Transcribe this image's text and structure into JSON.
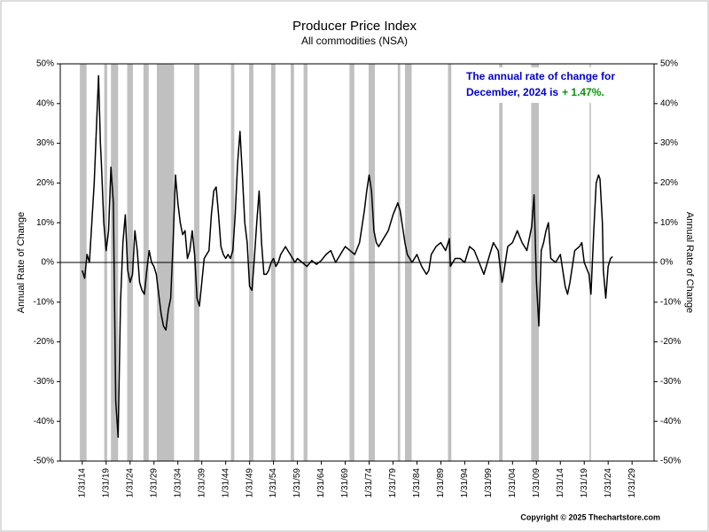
{
  "chart_data": {
    "type": "line",
    "title": "Producer Price Index",
    "subtitle": "All commodities (NSA)",
    "ylabel": "Annual Rate of Change",
    "y2label": "Annual Rate of Change",
    "annotation": {
      "line1": "The annual rate of change for",
      "line2": "December, 2024 is",
      "value_text": "+ 1.47%."
    },
    "copyright": "Copyright © 2025 Thechartstore.com",
    "color": "#000000",
    "recession_color": "#c0c0c0",
    "xlim": [
      1909.4,
      2033.6
    ],
    "ylim": [
      -50,
      50
    ],
    "y2lim": [
      -50,
      50
    ],
    "xticks": [
      {
        "value": 1914,
        "label": "1/31/14"
      },
      {
        "value": 1919,
        "label": "1/31/19"
      },
      {
        "value": 1924,
        "label": "1/31/24"
      },
      {
        "value": 1929,
        "label": "1/31/29"
      },
      {
        "value": 1934,
        "label": "1/31/34"
      },
      {
        "value": 1939,
        "label": "1/31/39"
      },
      {
        "value": 1944,
        "label": "1/31/44"
      },
      {
        "value": 1949,
        "label": "1/31/49"
      },
      {
        "value": 1954,
        "label": "1/31/54"
      },
      {
        "value": 1959,
        "label": "1/31/59"
      },
      {
        "value": 1964,
        "label": "1/31/64"
      },
      {
        "value": 1969,
        "label": "1/31/69"
      },
      {
        "value": 1974,
        "label": "1/31/74"
      },
      {
        "value": 1979,
        "label": "1/31/79"
      },
      {
        "value": 1984,
        "label": "1/31/84"
      },
      {
        "value": 1989,
        "label": "1/31/89"
      },
      {
        "value": 1994,
        "label": "1/31/94"
      },
      {
        "value": 1999,
        "label": "1/31/99"
      },
      {
        "value": 2004,
        "label": "1/31/04"
      },
      {
        "value": 2009,
        "label": "1/31/09"
      },
      {
        "value": 2014,
        "label": "1/31/14"
      },
      {
        "value": 2019,
        "label": "1/31/19"
      },
      {
        "value": 2024,
        "label": "1/31/24"
      },
      {
        "value": 2029,
        "label": "1/31/29"
      }
    ],
    "yticks": [
      {
        "value": 50,
        "label": "50%"
      },
      {
        "value": 40,
        "label": "40%"
      },
      {
        "value": 30,
        "label": "30%"
      },
      {
        "value": 20,
        "label": "20%"
      },
      {
        "value": 10,
        "label": "10%"
      },
      {
        "value": 0,
        "label": "0%"
      },
      {
        "value": -10,
        "label": "-10%"
      },
      {
        "value": -20,
        "label": "-20%"
      },
      {
        "value": -30,
        "label": "-30%"
      },
      {
        "value": -40,
        "label": "-40%"
      },
      {
        "value": -50,
        "label": "-50%"
      }
    ],
    "y2ticks": [
      {
        "value": 50,
        "label": "50%"
      },
      {
        "value": 40,
        "label": "40%"
      },
      {
        "value": 30,
        "label": "30%"
      },
      {
        "value": 20,
        "label": "20%"
      },
      {
        "value": 10,
        "label": "10%"
      },
      {
        "value": 0,
        "label": "0%"
      },
      {
        "value": -10,
        "label": "-10%"
      },
      {
        "value": -20,
        "label": "-20%"
      },
      {
        "value": -30,
        "label": "-30%"
      },
      {
        "value": -40,
        "label": "-40%"
      },
      {
        "value": -50,
        "label": "-50%"
      }
    ],
    "recessions": [
      [
        1913.5,
        1914.9
      ],
      [
        1918.6,
        1919.2
      ],
      [
        1920.0,
        1921.5
      ],
      [
        1923.4,
        1924.6
      ],
      [
        1926.8,
        1927.9
      ],
      [
        1929.6,
        1933.2
      ],
      [
        1937.4,
        1938.5
      ],
      [
        1945.1,
        1945.8
      ],
      [
        1948.9,
        1949.8
      ],
      [
        1953.5,
        1954.4
      ],
      [
        1957.6,
        1958.3
      ],
      [
        1960.3,
        1961.1
      ],
      [
        1969.9,
        1970.9
      ],
      [
        1973.9,
        1975.2
      ],
      [
        1980.0,
        1980.5
      ],
      [
        1981.5,
        1982.9
      ],
      [
        1990.5,
        1991.2
      ],
      [
        2001.2,
        2001.9
      ],
      [
        2007.9,
        2009.5
      ],
      [
        2020.1,
        2020.4
      ]
    ],
    "x": [
      1914,
      1914.5,
      1915,
      1915.5,
      1916,
      1916.5,
      1917,
      1917.4,
      1917.8,
      1918,
      1918.5,
      1919,
      1919.5,
      1920,
      1920.5,
      1921,
      1921.5,
      1922,
      1922.5,
      1923,
      1923.5,
      1924,
      1924.5,
      1925,
      1925.5,
      1926,
      1926.5,
      1927,
      1927.5,
      1928,
      1928.5,
      1929,
      1929.5,
      1930,
      1930.5,
      1931,
      1931.5,
      1932,
      1932.5,
      1933,
      1933.5,
      1934,
      1934.5,
      1935,
      1935.5,
      1936,
      1936.5,
      1937,
      1937.5,
      1938,
      1938.5,
      1939,
      1939.5,
      1940,
      1940.5,
      1941,
      1941.5,
      1942,
      1942.5,
      1943,
      1943.5,
      1944,
      1944.5,
      1945,
      1945.5,
      1946,
      1946.5,
      1947,
      1947.5,
      1948,
      1948.5,
      1949,
      1949.5,
      1950,
      1950.5,
      1951,
      1951.5,
      1952,
      1952.5,
      1953,
      1953.5,
      1954,
      1954.5,
      1955,
      1955.5,
      1956,
      1956.5,
      1957,
      1957.5,
      1958,
      1958.5,
      1959,
      1960,
      1961,
      1962,
      1963,
      1964,
      1965,
      1966,
      1967,
      1968,
      1969,
      1970,
      1971,
      1972,
      1973,
      1973.5,
      1974,
      1974.5,
      1975,
      1975.5,
      1976,
      1977,
      1978,
      1979,
      1980,
      1980.5,
      1981,
      1981.5,
      1982,
      1983,
      1984,
      1985,
      1986,
      1986.5,
      1987,
      1988,
      1989,
      1990,
      1990.8,
      1991,
      1992,
      1993,
      1994,
      1995,
      1996,
      1997,
      1998,
      1999,
      2000,
      2001,
      2001.8,
      2002,
      2003,
      2004,
      2005,
      2006,
      2007,
      2008,
      2008.5,
      2009,
      2009.5,
      2010,
      2010.5,
      2011,
      2011.5,
      2012,
      2013,
      2014,
      2015,
      2015.5,
      2016,
      2017,
      2018,
      2018.5,
      2019,
      2020,
      2020.4,
      2021,
      2021.5,
      2022,
      2022.3,
      2022.8,
      2023,
      2023.5,
      2024,
      2024.5,
      2024.92
    ],
    "values": [
      -2,
      -4,
      2,
      0,
      10,
      20,
      35,
      47,
      30,
      25,
      10,
      3,
      8,
      24,
      15,
      -35,
      -44,
      -10,
      5,
      12,
      -2,
      -5,
      -3,
      8,
      3,
      -5,
      -7,
      -8,
      -2,
      3,
      0,
      -1,
      -3,
      -8,
      -13,
      -16,
      -17,
      -12,
      -9,
      5,
      22,
      15,
      10,
      7,
      8,
      1,
      3,
      8,
      2,
      -9,
      -11,
      -5,
      1,
      2,
      3,
      12,
      18,
      19,
      12,
      4,
      2,
      1,
      2,
      1,
      3,
      12,
      25,
      33,
      22,
      10,
      5,
      -6,
      -7,
      1,
      10,
      18,
      5,
      -3,
      -3,
      -2,
      0,
      1,
      -1,
      0,
      2,
      3,
      4,
      3,
      2,
      1,
      0,
      1,
      0,
      -1,
      0.5,
      -0.5,
      0.5,
      2,
      3,
      0,
      2,
      4,
      3,
      2,
      5,
      13,
      18,
      22,
      18,
      8,
      5,
      4,
      6,
      8,
      12,
      15,
      13,
      9,
      5,
      2,
      0,
      2,
      -1,
      -3,
      -2,
      2,
      4,
      5,
      3,
      6,
      -1,
      1,
      1,
      0,
      4,
      3,
      0,
      -3,
      1,
      5,
      3,
      -5,
      -4,
      4,
      5,
      8,
      5,
      3,
      9,
      17,
      -5,
      -16,
      3,
      5,
      8,
      10,
      1,
      0,
      2,
      -6,
      -8,
      -5,
      3,
      4,
      5,
      0,
      -3,
      -8,
      8,
      20,
      22,
      21,
      10,
      -2,
      -9,
      -1,
      1,
      1.47
    ]
  }
}
